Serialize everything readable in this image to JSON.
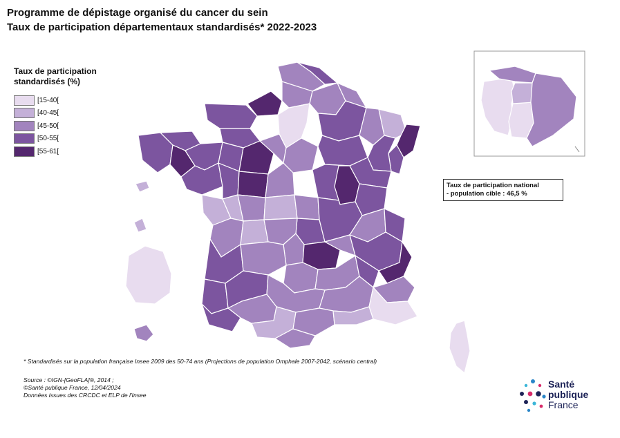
{
  "title": {
    "line1": "Programme de dépistage organisé du cancer du sein",
    "line2": "Taux de participation départementaux standardisés* 2022-2023"
  },
  "legend": {
    "title": "Taux de participation standardisés (%)",
    "items": [
      {
        "label": "[15-40[",
        "color": "#e8dcef"
      },
      {
        "label": "[40-45[",
        "color": "#c4b0d8"
      },
      {
        "label": "[45-50[",
        "color": "#a284be"
      },
      {
        "label": "[50-55[",
        "color": "#7c559f"
      },
      {
        "label": "[55-61[",
        "color": "#54276e"
      }
    ]
  },
  "national_rate": {
    "line1": "Taux de participation national",
    "line2": "- population cible : 46,5 %"
  },
  "footnote": "* Standardisés sur la population française Insee 2009 des 50-74 ans (Projections de population Omphale 2007-2042, scénario central)",
  "source": {
    "line1": "Source : ©IGN-[GeoFLA]®, 2014 ;",
    "line2": "©Santé publique France, 12/04/2024",
    "line3": "Données issues des CRCDC et ELP de l'Insee"
  },
  "logo": {
    "line1": "Santé",
    "line2": "publique",
    "line3": "France"
  }
}
